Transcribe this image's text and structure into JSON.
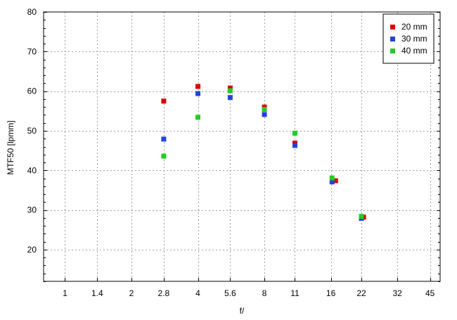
{
  "chart_data": {
    "type": "scatter",
    "xlabel": "f/",
    "ylabel": "MTF50 [lpmm]",
    "x_scale": "log2",
    "x_ticks": [
      "1",
      "1.4",
      "2",
      "2.8",
      "4",
      "5.6",
      "8",
      "11",
      "16",
      "22",
      "32",
      "45"
    ],
    "x_tick_values": [
      1,
      1.4,
      2,
      2.8,
      4,
      5.6,
      8,
      11,
      16,
      22,
      32,
      45
    ],
    "xlim": [
      0.8,
      50
    ],
    "ylim": [
      12,
      80
    ],
    "y_ticks": [
      20,
      30,
      40,
      50,
      60,
      70,
      80
    ],
    "grid": true,
    "legend_position": "top-right",
    "series": [
      {
        "name": "20 mm",
        "color": "#dd0000",
        "points": [
          [
            2.8,
            57.5
          ],
          [
            4,
            61.2
          ],
          [
            5.6,
            60.8
          ],
          [
            8,
            56.0
          ],
          [
            11,
            46.9
          ],
          [
            16.8,
            37.4
          ],
          [
            22.5,
            28.2
          ]
        ]
      },
      {
        "name": "30 mm",
        "color": "#2244dd",
        "points": [
          [
            2.8,
            47.9
          ],
          [
            4,
            59.4
          ],
          [
            5.6,
            58.4
          ],
          [
            8,
            54.1
          ],
          [
            11,
            46.3
          ],
          [
            16.2,
            37.1
          ],
          [
            22,
            27.9
          ]
        ]
      },
      {
        "name": "40 mm",
        "color": "#22cc22",
        "points": [
          [
            2.8,
            43.6
          ],
          [
            4,
            53.4
          ],
          [
            5.6,
            60.1
          ],
          [
            8,
            55.4
          ],
          [
            11,
            49.4
          ],
          [
            16.2,
            38.1
          ],
          [
            22,
            28.4
          ]
        ]
      }
    ]
  }
}
